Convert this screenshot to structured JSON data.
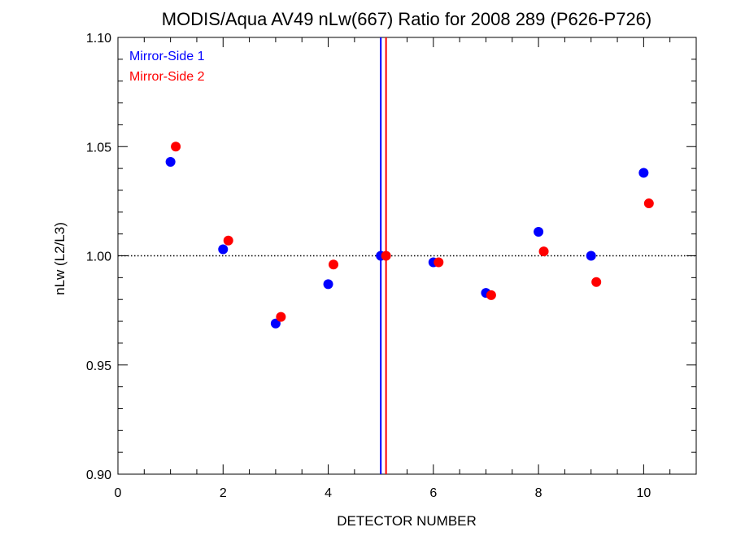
{
  "chart_data": {
    "type": "scatter",
    "title": "MODIS/Aqua AV49 nLw(667) Ratio for 2008 289 (P626-P726)",
    "xlabel": "DETECTOR NUMBER",
    "ylabel": "nLw (L2/L3)",
    "xlim": [
      0,
      11
    ],
    "ylim": [
      0.9,
      1.1
    ],
    "x_tick_labels": [
      "0",
      "2",
      "4",
      "6",
      "8",
      "10"
    ],
    "x_tick_values": [
      0,
      2,
      4,
      6,
      8,
      10
    ],
    "y_tick_labels": [
      "0.90",
      "0.95",
      "1.00",
      "1.05",
      "1.10"
    ],
    "y_tick_values": [
      0.9,
      0.95,
      1.0,
      1.05,
      1.1
    ],
    "reference_line_y": 1.0,
    "legend_position": "top-left",
    "series": [
      {
        "name": "Mirror-Side 1",
        "color": "#0000ff",
        "x": [
          1,
          2,
          3,
          4,
          5,
          6,
          7,
          8,
          9,
          10
        ],
        "y": [
          1.043,
          1.003,
          0.969,
          0.987,
          1.0,
          0.997,
          0.983,
          1.011,
          1.0,
          1.038
        ],
        "vertical_line_x": 5.0
      },
      {
        "name": "Mirror-Side 2",
        "color": "#ff0000",
        "x": [
          1.1,
          2.1,
          3.1,
          4.1,
          5.1,
          6.1,
          7.1,
          8.1,
          9.1,
          10.1
        ],
        "y": [
          1.05,
          1.007,
          0.972,
          0.996,
          1.0,
          0.997,
          0.982,
          1.002,
          0.988,
          1.024
        ],
        "vertical_line_x": 5.1
      }
    ]
  }
}
